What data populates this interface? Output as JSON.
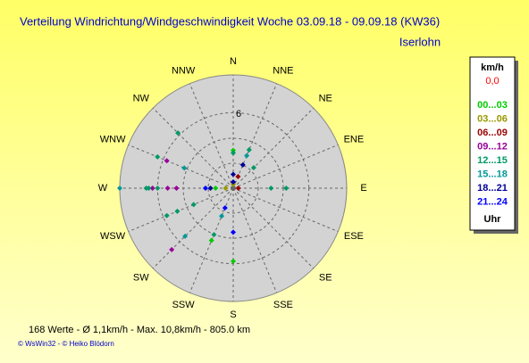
{
  "chart_data": {
    "type": "polar-scatter",
    "title": "Verteilung Windrichtung/Windgeschwindigkeit  Woche 03.09.18 - 09.09.18 (KW36)",
    "subtitle": "Iserlohn",
    "categories": [
      "N",
      "NNE",
      "NE",
      "ENE",
      "E",
      "ESE",
      "SE",
      "SSE",
      "S",
      "SSW",
      "SW",
      "WSW",
      "W",
      "WNW",
      "NW",
      "NNW"
    ],
    "rlim": [
      0,
      9
    ],
    "rticks": [
      6
    ],
    "grid": true,
    "legend_title": "km/h",
    "legend_calm": "0,0",
    "legend_unit": "Uhr",
    "series": [
      {
        "name": "00...03",
        "color": "#00cc00",
        "x": [
          "N",
          "S",
          "SSW",
          "W"
        ],
        "values": [
          3.0,
          5.8,
          4.5,
          1.4
        ]
      },
      {
        "name": "03...06",
        "color": "#999900",
        "x": [
          "W",
          "N"
        ],
        "values": [
          0.6,
          0.3
        ]
      },
      {
        "name": "06...09",
        "color": "#990000",
        "x": [
          "E",
          "NNE"
        ],
        "values": [
          0.4,
          1.0
        ]
      },
      {
        "name": "09...12",
        "color": "#990099",
        "x": [
          "W",
          "W",
          "W",
          "WNW",
          "SW"
        ],
        "values": [
          6.4,
          5.2,
          4.5,
          5.7,
          6.9
        ]
      },
      {
        "name": "12...15",
        "color": "#009966",
        "x": [
          "W",
          "W",
          "W",
          "NW",
          "WNW",
          "N",
          "NNE",
          "NE",
          "E",
          "E",
          "SSW",
          "WSW",
          "WSW",
          "WSW"
        ],
        "values": [
          6.9,
          6.7,
          6.0,
          6.2,
          6.5,
          2.8,
          3.3,
          2.3,
          3.0,
          4.2,
          4.0,
          5.7,
          4.8,
          3.4
        ]
      },
      {
        "name": "15...18",
        "color": "#009999",
        "x": [
          "W",
          "WNW",
          "NNE",
          "SSW",
          "SW"
        ],
        "values": [
          9.0,
          4.2,
          2.8,
          2.4,
          5.4
        ]
      },
      {
        "name": "18...21",
        "color": "#000099",
        "x": [
          "N",
          "N",
          "NNE",
          "W"
        ],
        "values": [
          1.1,
          0.5,
          2.0,
          1.8
        ]
      },
      {
        "name": "21...24",
        "color": "#0000ff",
        "x": [
          "S",
          "SSW",
          "W"
        ],
        "values": [
          3.5,
          1.7,
          2.2
        ]
      }
    ],
    "footer": "168 Werte   -   Ø 1,1km/h  -  Max. 10,8km/h  -   805.0 km",
    "credits": "© WsWin32  -  © Heiko Blödorn"
  }
}
